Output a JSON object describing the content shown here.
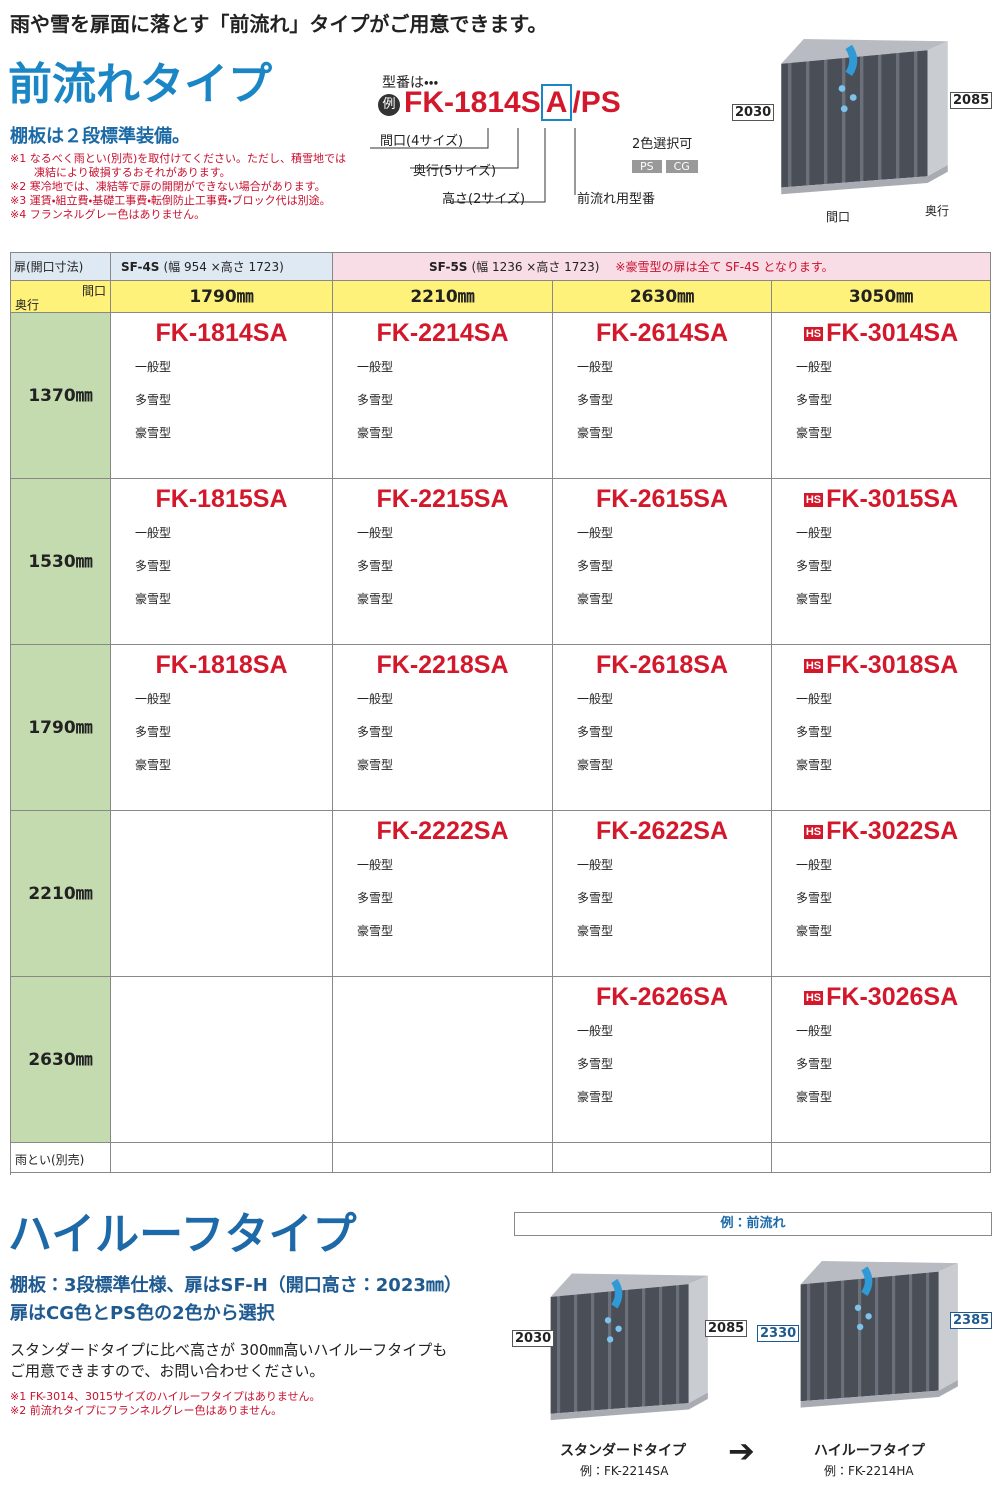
{
  "header": {
    "tagline": "雨や雪を扉面に落とす「前流れ」タイプがご用意できます。",
    "title": "前流れタイプ",
    "subtitle": "棚板は２段標準装備。",
    "notes": [
      "※1 なるべく雨とい(別売)を取付けてください。ただし、積雪地では",
      "凍結により破損するおそれがあります。",
      "※2 寒冷地では、凍結等で扉の開閉ができない場合があります。",
      "※3 運賃・組立費・基礎工事費・転倒防止工事費・ブロック代は別途。",
      "※4 フランネルグレー色はありません。"
    ]
  },
  "model_code": {
    "intro": "型番は・・・",
    "badge": "例",
    "code_main": "FK-1814S",
    "code_type": "A",
    "code_color": "/PS",
    "width_label": "間口(4サイズ)",
    "depth_label": "奥行(5サイズ)",
    "height_label": "高さ(2サイズ)",
    "type_label": "前流れ用型番",
    "color_label": "2色選択可",
    "colors": [
      "PS",
      "CG"
    ]
  },
  "top_illustration": {
    "height_front": "2030",
    "height_back": "2085",
    "width": "間口",
    "depth": "奥行"
  },
  "table": {
    "door_header": "扉(開口寸法)",
    "door_groups": [
      {
        "name": "SF-4S",
        "size": "(幅 954 ×高さ 1723)"
      },
      {
        "name": "SF-5S",
        "size": "(幅 1236 ×高さ 1723)",
        "note": "※豪雪型の扉は全て SF-4S となります。"
      }
    ],
    "corner_width": "間口",
    "corner_depth": "奥行",
    "columns": [
      "1790㎜",
      "2210㎜",
      "2630㎜",
      "3050㎜"
    ],
    "types": [
      "一般型",
      "多雪型",
      "豪雪型"
    ],
    "badge": "HS",
    "rows": [
      {
        "depth": "1370㎜",
        "models": [
          "FK-1814SA",
          "FK-2214SA",
          "FK-2614SA",
          "FK-3014SA"
        ]
      },
      {
        "depth": "1530㎜",
        "models": [
          "FK-1815SA",
          "FK-2215SA",
          "FK-2615SA",
          "FK-3015SA"
        ]
      },
      {
        "depth": "1790㎜",
        "models": [
          "FK-1818SA",
          "FK-2218SA",
          "FK-2618SA",
          "FK-3018SA"
        ]
      },
      {
        "depth": "2210㎜",
        "models": [
          null,
          "FK-2222SA",
          "FK-2622SA",
          "FK-3022SA"
        ]
      },
      {
        "depth": "2630㎜",
        "models": [
          null,
          null,
          "FK-2626SA",
          "FK-3026SA"
        ]
      }
    ],
    "gutter_row": "雨とい(別売)"
  },
  "high_roof": {
    "title": "ハイルーフタイプ",
    "lines": [
      "棚板：3段標準仕様、扉はSF-H（開口高さ：2023㎜）",
      "扉はCG色とPS色の2色から選択"
    ],
    "body": [
      "スタンダードタイプに比べ高さが 300㎜高いハイルーフタイプも",
      "ご用意できますので、お問い合わせください。"
    ],
    "notes": [
      "※1 FK-3014、3015サイズのハイルーフタイプはありません。",
      "※2 前流れタイプにフランネルグレー色はありません。"
    ],
    "example_header": "例：前流れ",
    "standard": {
      "name": "スタンダードタイプ",
      "code": "例：FK-2214SA",
      "height_front": "2030",
      "height_back": "2085"
    },
    "high": {
      "name": "ハイルーフタイプ",
      "code": "例：FK-2214HA",
      "height_front": "2330",
      "height_back": "2385"
    }
  }
}
